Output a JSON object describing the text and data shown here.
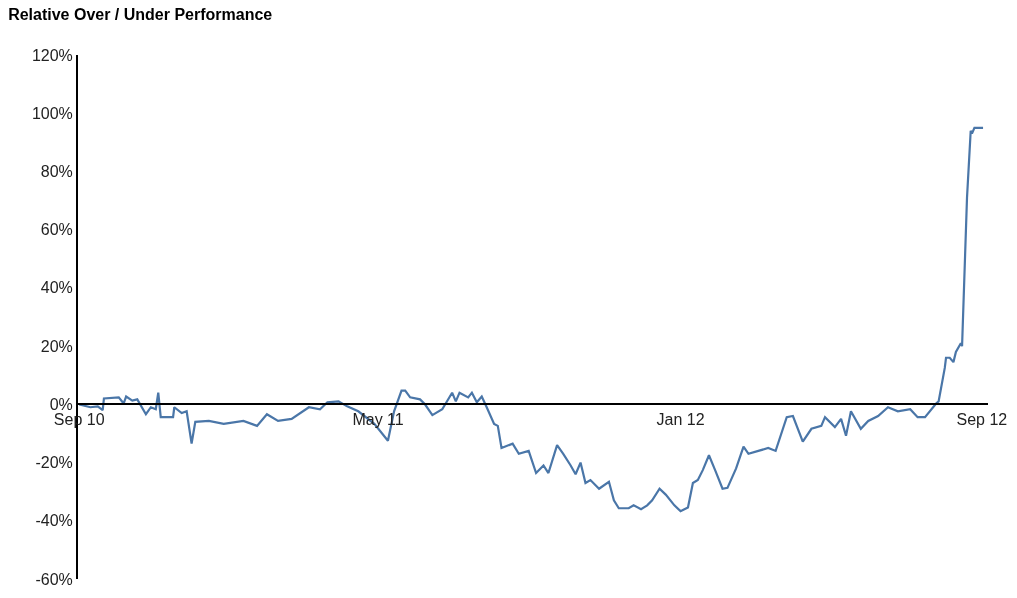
{
  "chart_data": {
    "type": "line",
    "title": "Relative Over / Under Performance",
    "x": [
      "2010-09-01",
      "2010-09-10",
      "2010-09-16",
      "2010-09-20",
      "2010-09-21",
      "2010-10-03",
      "2010-10-07",
      "2010-10-09",
      "2010-10-14",
      "2010-10-18",
      "2010-10-25",
      "2010-10-29",
      "2010-11-02",
      "2010-11-04",
      "2010-11-06",
      "2010-11-16",
      "2010-11-17",
      "2010-11-23",
      "2010-11-27",
      "2010-12-01",
      "2010-12-04",
      "2010-12-15",
      "2010-12-27",
      "2011-01-12",
      "2011-01-23",
      "2011-01-31",
      "2011-02-09",
      "2011-02-20",
      "2011-03-06",
      "2011-03-15",
      "2011-03-21",
      "2011-03-30",
      "2011-04-06",
      "2011-04-15",
      "2011-04-28",
      "2011-05-09",
      "2011-05-14",
      "2011-05-20",
      "2011-05-23",
      "2011-05-27",
      "2011-06-04",
      "2011-06-08",
      "2011-06-14",
      "2011-06-22",
      "2011-06-30",
      "2011-07-03",
      "2011-07-06",
      "2011-07-13",
      "2011-07-16",
      "2011-07-20",
      "2011-07-24",
      "2011-07-28",
      "2011-08-03",
      "2011-08-06",
      "2011-08-09",
      "2011-08-18",
      "2011-08-23",
      "2011-08-31",
      "2011-09-06",
      "2011-09-12",
      "2011-09-16",
      "2011-09-23",
      "2011-09-28",
      "2011-10-04",
      "2011-10-08",
      "2011-10-12",
      "2011-10-16",
      "2011-10-20",
      "2011-10-27",
      "2011-11-04",
      "2011-11-08",
      "2011-11-12",
      "2011-11-20",
      "2011-11-24",
      "2011-11-30",
      "2011-12-05",
      "2011-12-09",
      "2011-12-15",
      "2011-12-20",
      "2011-12-27",
      "2012-01-01",
      "2012-01-07",
      "2012-01-11",
      "2012-01-15",
      "2012-01-19",
      "2012-01-24",
      "2012-01-29",
      "2012-02-04",
      "2012-02-08",
      "2012-02-15",
      "2012-02-21",
      "2012-02-25",
      "2012-03-04",
      "2012-03-12",
      "2012-03-18",
      "2012-03-27",
      "2012-04-01",
      "2012-04-09",
      "2012-04-16",
      "2012-04-24",
      "2012-04-27",
      "2012-05-05",
      "2012-05-10",
      "2012-05-14",
      "2012-05-18",
      "2012-05-26",
      "2012-06-01",
      "2012-06-09",
      "2012-06-17",
      "2012-06-25",
      "2012-07-05",
      "2012-07-11",
      "2012-07-17",
      "2012-07-26",
      "2012-07-28",
      "2012-08-02",
      "2012-08-03",
      "2012-08-06",
      "2012-08-09",
      "2012-08-11",
      "2012-08-15",
      "2012-08-16",
      "2012-08-20",
      "2012-08-23",
      "2012-08-24",
      "2012-08-26",
      "2012-09-02"
    ],
    "series": [
      {
        "color": "#4a76a8",
        "values": [
          0,
          -1,
          -0.7,
          -2,
          2,
          2.4,
          0.3,
          2.7,
          1.3,
          1.7,
          -3.4,
          -1,
          -1.7,
          4,
          -4.4,
          -4.4,
          -1,
          -3,
          -2.4,
          -13.5,
          -6,
          -5.7,
          -6.7,
          -5.7,
          -7.4,
          -3.4,
          -5.7,
          -5,
          -1,
          -1.7,
          0.7,
          1,
          -0.7,
          -2.4,
          -6.7,
          -12.5,
          -2.4,
          4.7,
          4.7,
          2.4,
          1.7,
          0,
          -3.7,
          -1.7,
          4,
          1,
          4,
          2.4,
          4,
          0.7,
          2.7,
          -1,
          -6.7,
          -7.4,
          -15,
          -13.5,
          -17,
          -16,
          -23.6,
          -21,
          -23.6,
          -14,
          -17,
          -21,
          -24,
          -20,
          -27,
          -26,
          -29,
          -26.6,
          -33,
          -35.7,
          -35.7,
          -34.7,
          -36,
          -34.7,
          -33,
          -29,
          -31,
          -34.7,
          -36.7,
          -35.4,
          -27,
          -26,
          -22.6,
          -17.5,
          -22.6,
          -29,
          -28.7,
          -22,
          -14.5,
          -17,
          -16,
          -15,
          -16,
          -4.4,
          -4,
          -12.8,
          -8.4,
          -7.4,
          -4.4,
          -7.8,
          -5,
          -10.8,
          -2.4,
          -8.4,
          -5.7,
          -4,
          -1,
          -2.4,
          -1.7,
          -4.4,
          -4.4,
          0.3,
          1,
          12.5,
          16,
          16,
          14.5,
          18,
          21,
          20,
          71,
          94,
          93,
          95,
          95
        ]
      }
    ],
    "xlim": [
      "2010-08-31",
      "2012-09-06"
    ],
    "xticks": [
      {
        "value": "2010-09-01",
        "label": "Sep 10"
      },
      {
        "value": "2011-05-01",
        "label": "May 11"
      },
      {
        "value": "2012-01-01",
        "label": "Jan 12"
      },
      {
        "value": "2012-09-01",
        "label": "Sep 12"
      }
    ],
    "ylim": [
      -60,
      120
    ],
    "yticks": [
      {
        "value": -60,
        "label": "-60%"
      },
      {
        "value": -40,
        "label": "-40%"
      },
      {
        "value": -20,
        "label": "-20%"
      },
      {
        "value": 0,
        "label": "0%"
      },
      {
        "value": 20,
        "label": "20%"
      },
      {
        "value": 40,
        "label": "40%"
      },
      {
        "value": 60,
        "label": "60%"
      },
      {
        "value": 80,
        "label": "80%"
      },
      {
        "value": 100,
        "label": "100%"
      },
      {
        "value": 120,
        "label": "120%"
      }
    ],
    "marker": "none",
    "line_style": "solid"
  }
}
